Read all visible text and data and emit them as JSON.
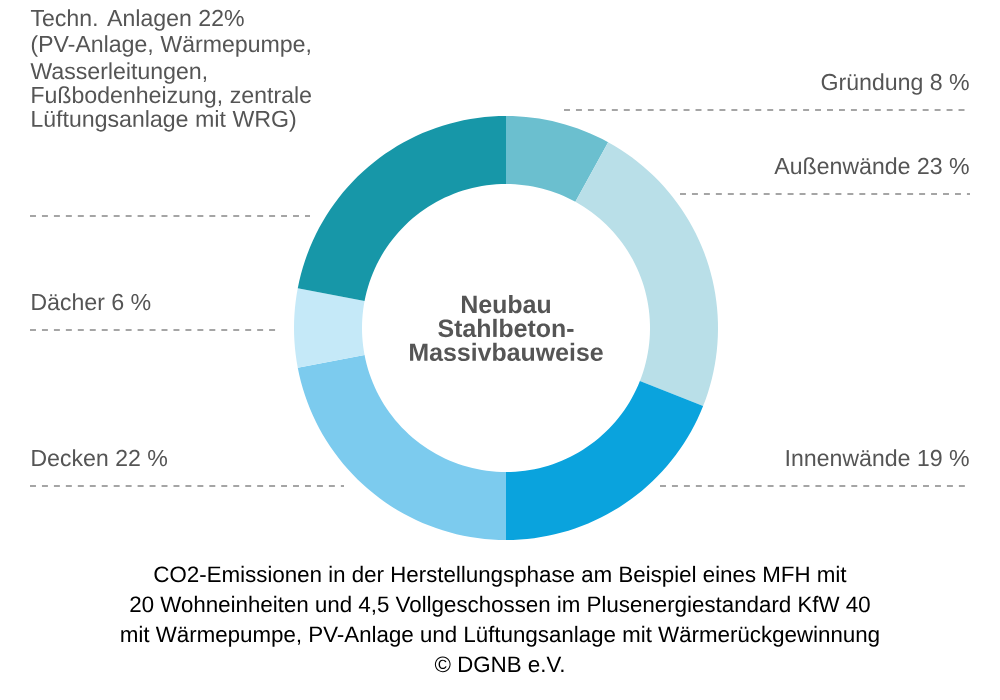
{
  "chart_data": {
    "type": "donut",
    "title": "Neubau Stahlbeton-Massivbauweise",
    "categories": [
      "Gründung",
      "Außenwände",
      "Innenwände",
      "Decken",
      "Dächer",
      "Techn. Anlagen"
    ],
    "values": [
      8,
      23,
      19,
      22,
      6,
      22
    ],
    "value_labels": [
      "8 %",
      "23 %",
      "19 %",
      "22 %",
      "6 %",
      "22%"
    ],
    "colors": [
      "#6bbfcf",
      "#b9dfe8",
      "#0aa3dd",
      "#7ccbee",
      "#c5e9f8",
      "#1797a8"
    ],
    "annotations": [
      "(PV-Anlage, Wärmepumpe, Wasserleitungen, Fußbodenheizung, zentrale Lüftungsanlage mit WRG)",
      "CO2-Emissionen in der Herstellungsphase am Beispiel eines MFH mit",
      "20 Wohneinheiten und 4,5 Vollgeschossen im Plusenergiestandard KfW 40",
      "mit Wärmepumpe, PV-Anlage und Lüftungsanlage mit Wärmerückgewinnung",
      "© DGNB e.V."
    ]
  }
}
